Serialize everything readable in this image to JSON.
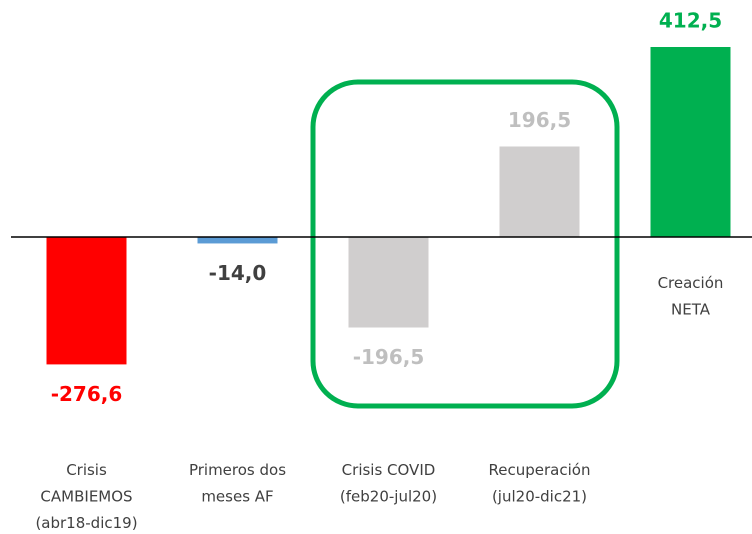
{
  "chart_data": {
    "type": "bar",
    "categories": [
      "Crisis\nCAMBIEMOS\n(abr18-dic19)",
      "Primeros dos\nmeses AF",
      "Crisis COVID\n(feb20-jul20)",
      "Recuperación\n(jul20-dic21)",
      "Creación\nNETA"
    ],
    "values": [
      -276.6,
      -14.0,
      -196.5,
      196.5,
      412.5
    ],
    "value_labels": [
      "-276,6",
      "-14,0",
      "-196,5",
      "196,5",
      "412,5"
    ],
    "colors": [
      "#ff0000",
      "#5b9bd5",
      "#d0cece",
      "#d0cece",
      "#00b050"
    ],
    "label_colors": [
      "#ff0000",
      "#404040",
      "#bfbfbf",
      "#bfbfbf",
      "#00b050"
    ]
  }
}
